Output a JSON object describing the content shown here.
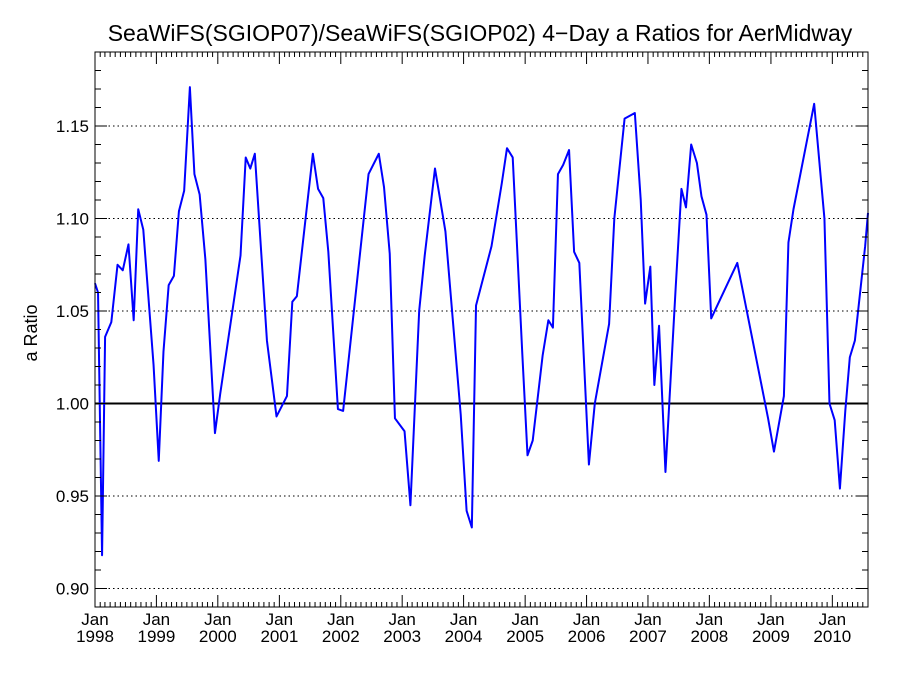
{
  "chart_data": {
    "type": "line",
    "title": "SeaWiFS(SGIOP07)/SeaWiFS(SGIOP02) 4−Day a Ratios for AerMidway",
    "xlabel": "",
    "ylabel": "a Ratio",
    "xlim": [
      "1998-01-01",
      "2010-08-01"
    ],
    "ylim": [
      0.89,
      1.19
    ],
    "yticks": [
      0.9,
      0.95,
      1.0,
      1.05,
      1.1,
      1.15
    ],
    "ytick_labels": [
      "0.90",
      "0.95",
      "1.00",
      "1.05",
      "1.10",
      "1.15"
    ],
    "xticks": [
      {
        "month": "Jan",
        "year": "1998",
        "date": "1998-01-01"
      },
      {
        "month": "Jan",
        "year": "1999",
        "date": "1999-01-01"
      },
      {
        "month": "Jan",
        "year": "2000",
        "date": "2000-01-01"
      },
      {
        "month": "Jan",
        "year": "2001",
        "date": "2001-01-01"
      },
      {
        "month": "Jan",
        "year": "2002",
        "date": "2002-01-01"
      },
      {
        "month": "Jan",
        "year": "2003",
        "date": "2003-01-01"
      },
      {
        "month": "Jan",
        "year": "2004",
        "date": "2004-01-01"
      },
      {
        "month": "Jan",
        "year": "2005",
        "date": "2005-01-01"
      },
      {
        "month": "Jan",
        "year": "2006",
        "date": "2006-01-01"
      },
      {
        "month": "Jan",
        "year": "2007",
        "date": "2007-01-01"
      },
      {
        "month": "Jan",
        "year": "2008",
        "date": "2008-01-01"
      },
      {
        "month": "Jan",
        "year": "2009",
        "date": "2009-01-01"
      },
      {
        "month": "Jan",
        "year": "2010",
        "date": "2010-01-01"
      }
    ],
    "reference_line": 1.0,
    "grid": "horizontal dotted",
    "series": [
      {
        "color": "#0000ff",
        "points": [
          [
            "1998-01-01",
            1.065
          ],
          [
            "1998-01-19",
            1.06
          ],
          [
            "1998-02-12",
            0.918
          ],
          [
            "1998-03-02",
            1.036
          ],
          [
            "1998-04-08",
            1.044
          ],
          [
            "1998-05-15",
            1.075
          ],
          [
            "1998-06-15",
            1.072
          ],
          [
            "1998-07-19",
            1.086
          ],
          [
            "1998-08-19",
            1.045
          ],
          [
            "1998-09-15",
            1.105
          ],
          [
            "1998-10-15",
            1.094
          ],
          [
            "1998-12-15",
            1.021
          ],
          [
            "1999-01-15",
            0.969
          ],
          [
            "1999-02-12",
            1.028
          ],
          [
            "1999-03-15",
            1.064
          ],
          [
            "1999-04-15",
            1.069
          ],
          [
            "1999-05-15",
            1.104
          ],
          [
            "1999-06-15",
            1.115
          ],
          [
            "1999-07-19",
            1.171
          ],
          [
            "1999-08-15",
            1.124
          ],
          [
            "1999-09-15",
            1.113
          ],
          [
            "1999-10-19",
            1.078
          ],
          [
            "1999-12-15",
            0.984
          ],
          [
            "2000-01-15",
            1.005
          ],
          [
            "2000-05-15",
            1.08
          ],
          [
            "2000-06-15",
            1.133
          ],
          [
            "2000-07-12",
            1.127
          ],
          [
            "2000-08-08",
            1.135
          ],
          [
            "2000-10-19",
            1.034
          ],
          [
            "2000-12-15",
            0.993
          ],
          [
            "2001-02-15",
            1.004
          ],
          [
            "2001-03-19",
            1.055
          ],
          [
            "2001-04-15",
            1.058
          ],
          [
            "2001-07-19",
            1.135
          ],
          [
            "2001-08-19",
            1.116
          ],
          [
            "2001-09-19",
            1.111
          ],
          [
            "2001-10-19",
            1.082
          ],
          [
            "2001-12-15",
            0.997
          ],
          [
            "2002-01-15",
            0.996
          ],
          [
            "2002-06-15",
            1.124
          ],
          [
            "2002-08-15",
            1.135
          ],
          [
            "2002-09-15",
            1.117
          ],
          [
            "2002-10-19",
            1.081
          ],
          [
            "2002-11-19",
            0.992
          ],
          [
            "2003-01-15",
            0.985
          ],
          [
            "2003-02-19",
            0.945
          ],
          [
            "2003-04-12",
            1.05
          ],
          [
            "2003-05-15",
            1.08
          ],
          [
            "2003-07-15",
            1.127
          ],
          [
            "2003-09-15",
            1.093
          ],
          [
            "2003-12-15",
            0.994
          ],
          [
            "2004-01-19",
            0.942
          ],
          [
            "2004-02-19",
            0.933
          ],
          [
            "2004-03-15",
            1.053
          ],
          [
            "2004-06-15",
            1.085
          ],
          [
            "2004-08-15",
            1.119
          ],
          [
            "2004-09-15",
            1.138
          ],
          [
            "2004-10-19",
            1.133
          ],
          [
            "2004-12-15",
            1.027
          ],
          [
            "2005-01-15",
            0.972
          ],
          [
            "2005-02-15",
            0.98
          ],
          [
            "2005-04-15",
            1.026
          ],
          [
            "2005-05-19",
            1.045
          ],
          [
            "2005-06-15",
            1.041
          ],
          [
            "2005-07-15",
            1.124
          ],
          [
            "2005-08-15",
            1.129
          ],
          [
            "2005-09-19",
            1.137
          ],
          [
            "2005-10-19",
            1.082
          ],
          [
            "2005-11-19",
            1.076
          ],
          [
            "2006-01-15",
            0.967
          ],
          [
            "2006-02-19",
            1.0
          ],
          [
            "2006-05-15",
            1.043
          ],
          [
            "2006-06-15",
            1.1
          ],
          [
            "2006-08-15",
            1.154
          ],
          [
            "2006-10-15",
            1.157
          ],
          [
            "2006-11-19",
            1.11
          ],
          [
            "2006-12-15",
            1.054
          ],
          [
            "2007-01-15",
            1.074
          ],
          [
            "2007-02-08",
            1.01
          ],
          [
            "2007-03-08",
            1.042
          ],
          [
            "2007-04-15",
            0.963
          ],
          [
            "2007-06-15",
            1.063
          ],
          [
            "2007-07-19",
            1.116
          ],
          [
            "2007-08-15",
            1.106
          ],
          [
            "2007-09-15",
            1.14
          ],
          [
            "2007-10-19",
            1.13
          ],
          [
            "2007-11-15",
            1.112
          ],
          [
            "2007-12-15",
            1.102
          ],
          [
            "2008-01-12",
            1.046
          ],
          [
            "2008-06-15",
            1.076
          ],
          [
            "2008-12-15",
            0.992
          ],
          [
            "2009-01-19",
            0.974
          ],
          [
            "2009-03-19",
            1.004
          ],
          [
            "2009-04-15",
            1.087
          ],
          [
            "2009-05-15",
            1.105
          ],
          [
            "2009-09-15",
            1.162
          ],
          [
            "2009-11-15",
            1.1
          ],
          [
            "2009-12-15",
            1.0
          ],
          [
            "2010-01-15",
            0.991
          ],
          [
            "2010-02-15",
            0.954
          ],
          [
            "2010-03-19",
            0.996
          ],
          [
            "2010-04-15",
            1.025
          ],
          [
            "2010-05-15",
            1.034
          ],
          [
            "2010-07-15",
            1.085
          ],
          [
            "2010-08-01",
            1.103
          ]
        ]
      }
    ]
  }
}
